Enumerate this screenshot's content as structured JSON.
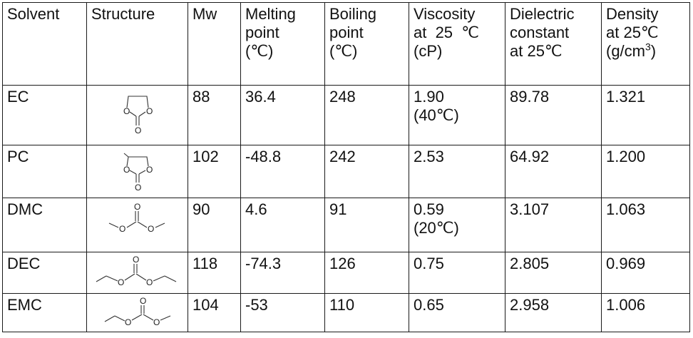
{
  "table": {
    "headers": {
      "solvent": [
        "Solvent"
      ],
      "structure": [
        "Structure"
      ],
      "mw": [
        "Mw"
      ],
      "melting": [
        "Melting",
        "point",
        "(℃)"
      ],
      "boiling": [
        "Boiling",
        "point",
        "(℃)"
      ],
      "viscosity": [
        "Viscosity",
        "at  25  ℃",
        "(cP)"
      ],
      "dielectric": [
        "Dielectric",
        "constant",
        "at 25℃"
      ],
      "density": [
        "Density",
        "at 25℃"
      ],
      "density_unit_pre": "(g/cm",
      "density_unit_sup": "3",
      "density_unit_post": ")"
    },
    "rows": [
      {
        "solvent": "EC",
        "structure_icon": "ethylene-carbonate-structure",
        "structure_atoms": [
          "O",
          "O",
          "O"
        ],
        "mw": "88",
        "melting": "36.4",
        "boiling": "248",
        "viscosity": [
          "1.90",
          "(40℃)"
        ],
        "dielectric": "89.78",
        "density": "1.321"
      },
      {
        "solvent": "PC",
        "structure_icon": "propylene-carbonate-structure",
        "structure_atoms": [
          "O",
          "O",
          "O"
        ],
        "mw": "102",
        "melting": "-48.8",
        "boiling": "242",
        "viscosity": [
          "2.53"
        ],
        "dielectric": "64.92",
        "density": "1.200"
      },
      {
        "solvent": "DMC",
        "structure_icon": "dimethyl-carbonate-structure",
        "structure_atoms": [
          "O",
          "O",
          "O"
        ],
        "mw": "90",
        "melting": "4.6",
        "boiling": "91",
        "viscosity": [
          "0.59",
          "(20℃)"
        ],
        "dielectric": "3.107",
        "density": "1.063"
      },
      {
        "solvent": "DEC",
        "structure_icon": "diethyl-carbonate-structure",
        "structure_atoms": [
          "O",
          "O",
          "O"
        ],
        "mw": "118",
        "melting": "-74.3",
        "boiling": "126",
        "viscosity": [
          "0.75"
        ],
        "dielectric": "2.805",
        "density": "0.969"
      },
      {
        "solvent": "EMC",
        "structure_icon": "ethyl-methyl-carbonate-structure",
        "structure_atoms": [
          "O",
          "O",
          "O"
        ],
        "mw": "104",
        "melting": "-53",
        "boiling": "110",
        "viscosity": [
          "0.65"
        ],
        "dielectric": "2.958",
        "density": "1.006"
      }
    ]
  }
}
